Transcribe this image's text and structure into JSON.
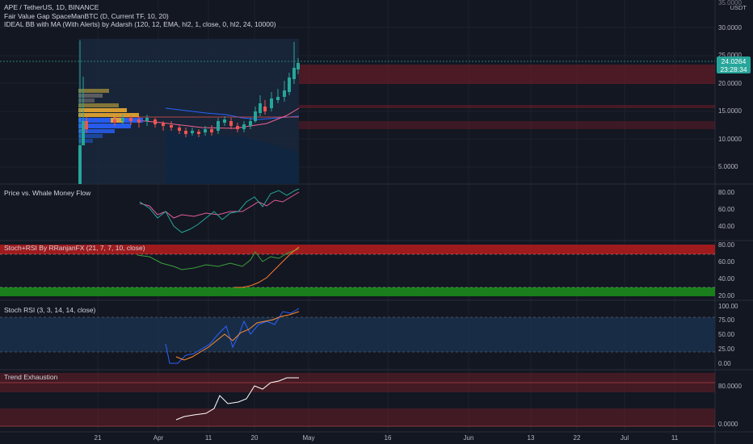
{
  "header": {
    "symbol_line": "APE / TetherUS, 1D, BINANCE",
    "indicator1": "Fair Value Gap SpaceManBTC (D, Current TF, 10, 20)",
    "indicator2": "IDEAL BB with MA (With Alerts) by Adarsh (120, 12, EMA, hl2, 1, close, 0, hl2, 24, 10000)"
  },
  "price_axis": {
    "currency_line1": "USDT",
    "ticks": [
      "35.0000",
      "30.0000",
      "25.0000",
      "20.0000",
      "15.0000",
      "10.0000",
      "5.0000"
    ],
    "current_price": "24.0264",
    "countdown": "23:28:34"
  },
  "panes": {
    "whale": {
      "title": "Price vs. Whale Money Flow",
      "ticks": [
        "80.00",
        "60.00",
        "40.00"
      ]
    },
    "stoch_rsi_ranjan": {
      "title": "Stoch+RSI By RRanjanFX (21, 7, 7, 10, close)",
      "ticks": [
        "80.00",
        "60.00",
        "40.00",
        "20.00"
      ]
    },
    "stoch_rsi": {
      "title": "Stoch RSI (3, 3, 14, 14, close)",
      "ticks": [
        "100.00",
        "75.00",
        "50.00",
        "25.00",
        "0.00"
      ]
    },
    "trend": {
      "title": "Trend Exhaustion",
      "ticks": [
        "80.0000",
        "0.0000"
      ]
    }
  },
  "time_axis": {
    "labels": [
      "21",
      "Apr",
      "11",
      "20",
      "May",
      "16",
      "Jun",
      "13",
      "22",
      "Jul",
      "11"
    ]
  },
  "colors": {
    "background": "#131722",
    "up": "#26a69a",
    "down": "#ef5350",
    "price_line": "#26a69a"
  }
}
